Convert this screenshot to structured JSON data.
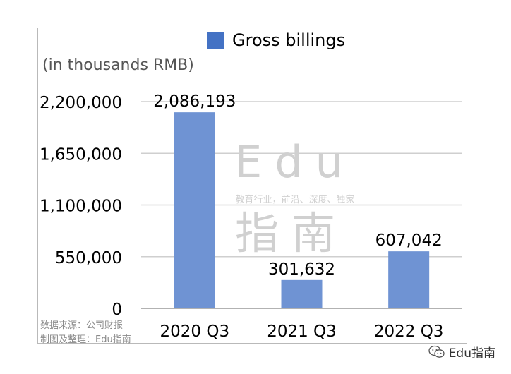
{
  "chart_data": {
    "type": "bar",
    "categories": [
      "2020 Q3",
      "2021 Q3",
      "2022 Q3"
    ],
    "series": [
      {
        "name": "Gross billings",
        "values": [
          2086193,
          301632,
          607042
        ]
      }
    ],
    "data_labels": [
      "2,086,193",
      "301,632",
      "607,042"
    ],
    "y_ticks": [
      0,
      550000,
      1100000,
      1650000,
      2200000
    ],
    "y_tick_labels": [
      "0",
      "550,000",
      "1,100,000",
      "1,650,000",
      "2,200,000"
    ],
    "ylim": [
      0,
      2200000
    ],
    "unit_label": "(in thousands RMB)",
    "grid": true,
    "legend_position": "top",
    "bar_color": "#6f93d3",
    "legend_color": "#4472c4"
  },
  "watermark": {
    "title": "Edu",
    "tagline": "教育行业，前沿、深度、独家",
    "subtitle": "指南"
  },
  "source_note": {
    "line1": "数据来源：公司财报",
    "line2": "制图及整理：Edu指南"
  },
  "footer": {
    "brand": "Edu指南",
    "icon": "wechat-icon"
  }
}
